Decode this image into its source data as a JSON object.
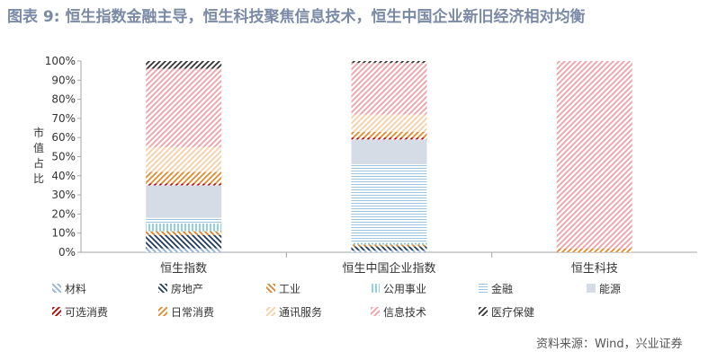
{
  "title": "图表 9: 恒生指数金融主导，恒生科技聚焦信息技术，恒生中国企业新旧经济相对均衡",
  "source": "资料来源：Wind，兴业证券",
  "colors": {
    "title": "#7a8aa6",
    "axis": "#a6a6a6",
    "text": "#333333"
  },
  "chart_data": {
    "type": "bar",
    "stacked": true,
    "ylabel": "市值占比",
    "ylim": [
      0,
      100
    ],
    "yticks": [
      "0%",
      "10%",
      "20%",
      "30%",
      "40%",
      "50%",
      "60%",
      "70%",
      "80%",
      "90%",
      "100%"
    ],
    "categories": [
      "恒生指数",
      "恒生中国企业指数",
      "恒生科技"
    ],
    "legend_position": "bottom",
    "series": [
      {
        "name": "材料",
        "color": "#8fb1d8",
        "pattern": "diag-down",
        "values": [
          2,
          1,
          0
        ]
      },
      {
        "name": "房地产",
        "color": "#1f3a5f",
        "pattern": "diag-down",
        "values": [
          7,
          2,
          0
        ]
      },
      {
        "name": "工业",
        "color": "#d9822b",
        "pattern": "diag-down",
        "values": [
          2,
          1,
          0
        ]
      },
      {
        "name": "公用事业",
        "color": "#76c7d9",
        "pattern": "vertical",
        "values": [
          4,
          1,
          0
        ]
      },
      {
        "name": "金融",
        "color": "#9cc3e0",
        "pattern": "horizontal",
        "values": [
          3,
          41,
          0
        ]
      },
      {
        "name": "能源",
        "color": "#d6dce6",
        "pattern": "solid",
        "values": [
          17,
          13,
          0
        ]
      },
      {
        "name": "可选消费",
        "color": "#c00000",
        "pattern": "diag-up",
        "values": [
          1,
          1,
          0
        ]
      },
      {
        "name": "日常消费",
        "color": "#e08a2c",
        "pattern": "diag-up",
        "values": [
          6,
          3,
          2
        ]
      },
      {
        "name": "通讯服务",
        "color": "#f5cfa6",
        "pattern": "diag-up",
        "values": [
          13,
          9,
          0
        ]
      },
      {
        "name": "信息技术",
        "color": "#f2a0a8",
        "pattern": "diag-up",
        "values": [
          41,
          27,
          98
        ]
      },
      {
        "name": "医疗保健",
        "color": "#333333",
        "pattern": "diag-up",
        "values": [
          4,
          1,
          0
        ]
      }
    ]
  }
}
